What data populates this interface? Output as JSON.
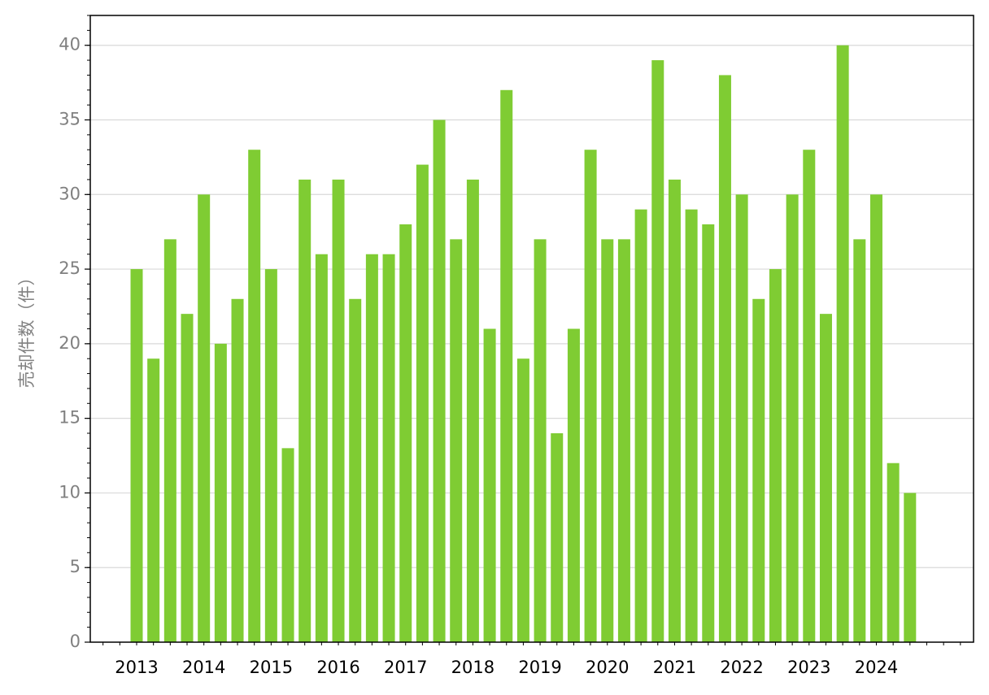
{
  "chart_data": {
    "type": "bar",
    "y_label": "売却件数（件）",
    "categories": [
      "2013",
      null,
      null,
      null,
      "2014",
      null,
      null,
      null,
      "2015",
      null,
      null,
      null,
      "2016",
      null,
      null,
      null,
      "2017",
      null,
      null,
      null,
      "2018",
      null,
      null,
      null,
      "2019",
      null,
      null,
      null,
      "2020",
      null,
      null,
      null,
      "2021",
      null,
      null,
      null,
      "2022",
      null,
      null,
      null,
      "2023",
      null,
      null,
      null,
      "2024",
      null,
      null
    ],
    "values": [
      25,
      19,
      27,
      22,
      30,
      20,
      23,
      33,
      25,
      13,
      31,
      26,
      31,
      23,
      26,
      26,
      28,
      32,
      35,
      27,
      31,
      21,
      37,
      19,
      27,
      14,
      21,
      33,
      27,
      27,
      29,
      39,
      31,
      29,
      28,
      38,
      30,
      23,
      25,
      30,
      33,
      22,
      40,
      27,
      30,
      12,
      10
    ],
    "color": "#7fcc33",
    "ylim": [
      0,
      42
    ],
    "yticks": [
      0,
      5,
      10,
      15,
      20,
      25,
      30,
      35,
      40
    ],
    "grid": true
  }
}
